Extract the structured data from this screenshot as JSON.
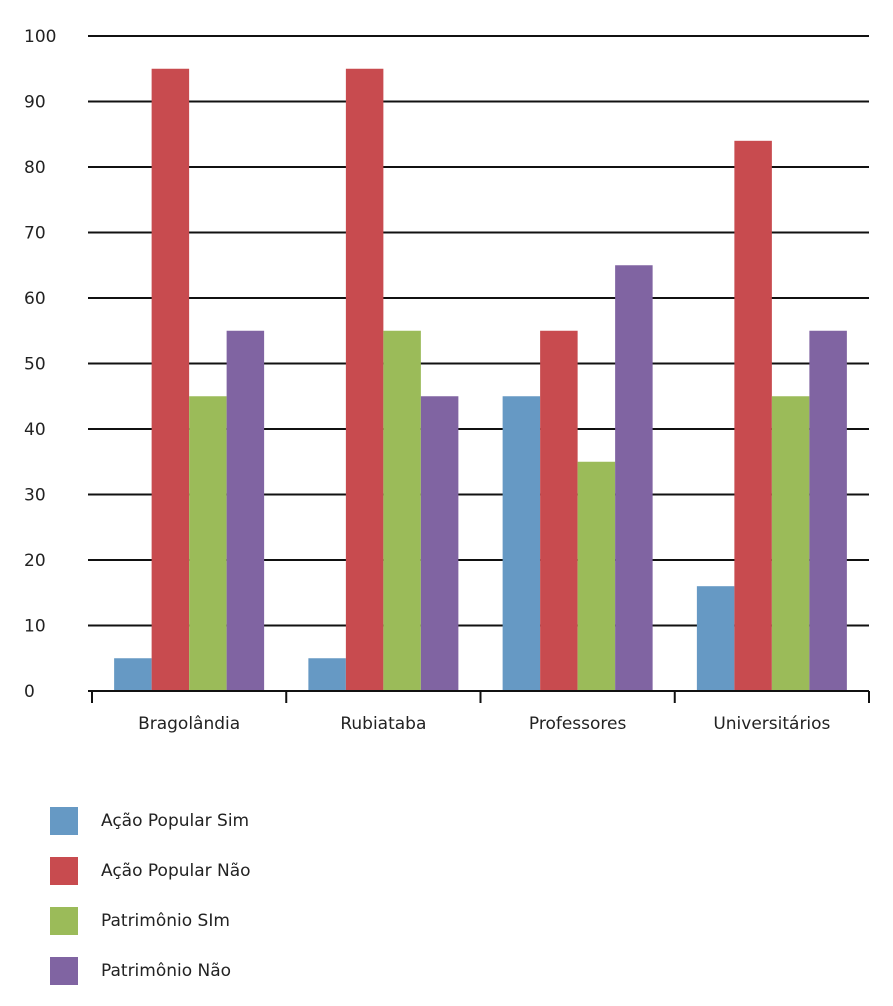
{
  "chart_data": {
    "type": "bar",
    "title": "",
    "xlabel": "",
    "ylabel": "",
    "ylim": [
      0,
      100
    ],
    "yticks": [
      0,
      10,
      20,
      30,
      40,
      50,
      60,
      70,
      80,
      90,
      100
    ],
    "grid": true,
    "legend_position": "bottom-left",
    "categories": [
      "Bragolândia",
      "Rubiataba",
      "Professores",
      "Universitários"
    ],
    "series": [
      {
        "name": "Ação Popular Sim",
        "color": "#6699c4",
        "values": [
          5,
          5,
          45,
          16
        ]
      },
      {
        "name": "Ação Popular Não",
        "color": "#c84b4f",
        "values": [
          95,
          95,
          55,
          84
        ]
      },
      {
        "name": "Patrimônio SIm",
        "color": "#9bbb59",
        "values": [
          45,
          55,
          35,
          45
        ]
      },
      {
        "name": "Patrimônio Não",
        "color": "#8064a2",
        "values": [
          55,
          45,
          65,
          55
        ]
      }
    ]
  }
}
